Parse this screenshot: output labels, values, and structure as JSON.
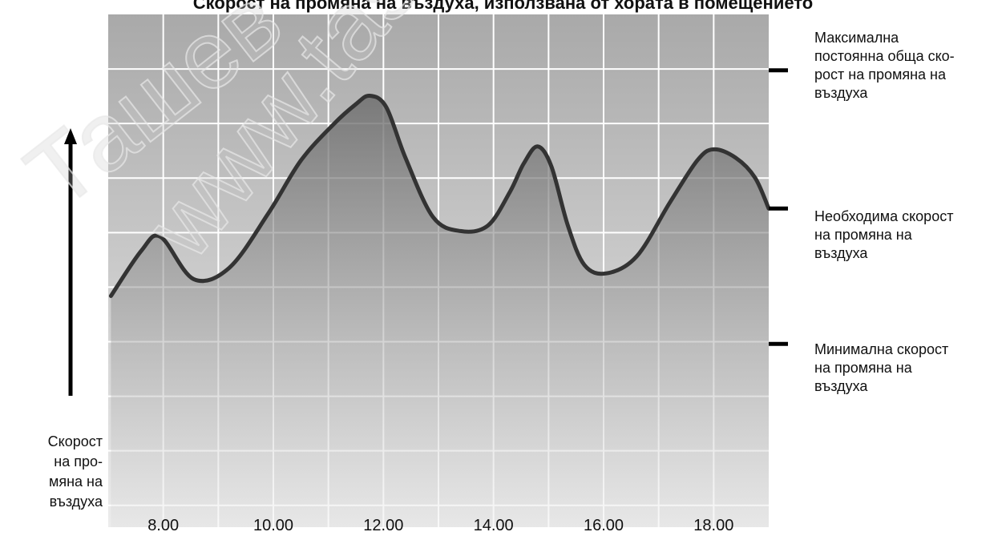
{
  "chart_data": {
    "type": "line",
    "title": "Скорост на промяна на въздуха, използвана от хората в помещението",
    "ylabel_lines": [
      "Скорост",
      "на про-",
      "мяна на",
      "въздуха"
    ],
    "x_tick_labels": [
      "8.00",
      "10.00",
      "12.00",
      "14.00",
      "16.00",
      "18.00"
    ],
    "x_tick_values": [
      8,
      10,
      12,
      14,
      16,
      18
    ],
    "xlim": [
      7,
      19
    ],
    "ylim": [
      0,
      10
    ],
    "grid": true,
    "area_fill": true,
    "series": [
      {
        "x": [
          7.05,
          7.6,
          7.95,
          8.55,
          9.2,
          9.9,
          10.5,
          11.1,
          11.5,
          11.75,
          12.05,
          12.4,
          12.9,
          13.4,
          13.9,
          14.3,
          14.55,
          14.8,
          15.05,
          15.35,
          15.65,
          16.05,
          16.6,
          17.2,
          17.7,
          18.0,
          18.4,
          18.75,
          19.0
        ],
        "y": [
          3.0,
          4.6,
          5.1,
          3.6,
          4.0,
          5.9,
          7.8,
          9.1,
          9.8,
          10.1,
          9.7,
          7.9,
          5.8,
          5.3,
          5.5,
          6.7,
          7.7,
          8.3,
          7.6,
          5.5,
          4.1,
          3.8,
          4.4,
          6.3,
          7.8,
          8.2,
          7.9,
          7.2,
          6.1
        ]
      }
    ],
    "reference_levels": [
      {
        "name": "max",
        "value": 11.0
      },
      {
        "name": "required",
        "value": 6.1
      },
      {
        "name": "min",
        "value": 1.3
      }
    ]
  },
  "labels": {
    "max_lines": [
      "Максимална",
      "постоянна обща ско-",
      "рост на промяна на",
      "въздуха"
    ],
    "required_lines": [
      "Необходима скорост",
      "на промяна на",
      "въздуха"
    ],
    "min_lines": [
      "Минимална скорост",
      "на промяна на",
      "въздуха"
    ]
  },
  "watermark": [
    "Ташев",
    "www.tas"
  ]
}
